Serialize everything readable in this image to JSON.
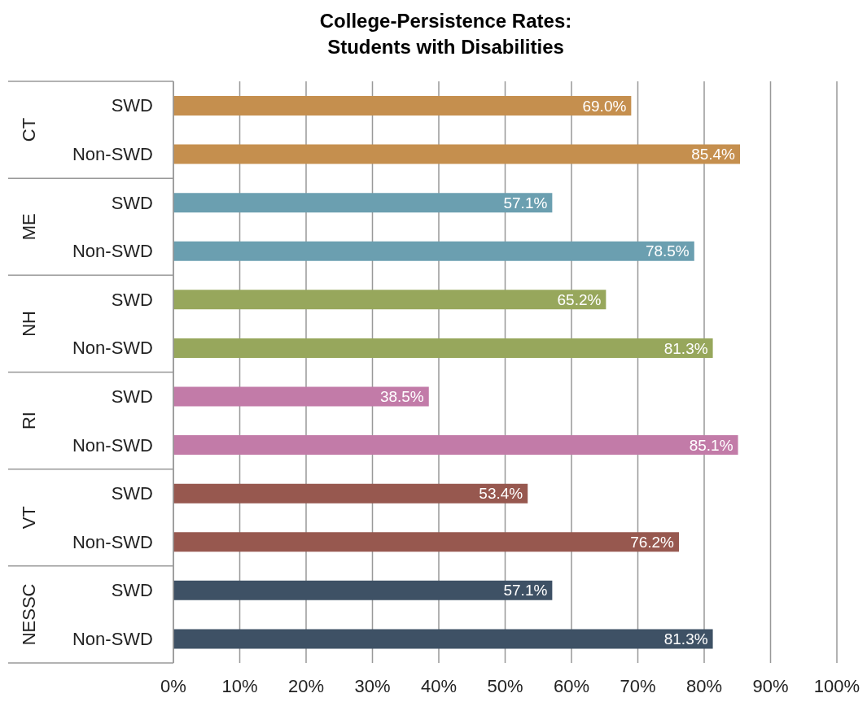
{
  "chart_data": {
    "type": "bar",
    "orientation": "horizontal",
    "title": "College-Persistence Rates:\nStudents with Disabilities",
    "categories": [
      "SWD",
      "Non-SWD",
      "SWD",
      "Non-SWD",
      "SWD",
      "Non-SWD",
      "SWD",
      "Non-SWD",
      "SWD",
      "Non-SWD",
      "SWD",
      "Non-SWD"
    ],
    "values": [
      69.0,
      85.4,
      57.1,
      78.5,
      65.2,
      81.3,
      38.5,
      85.1,
      53.4,
      76.2,
      57.1,
      81.3
    ],
    "value_labels": [
      "69.0%",
      "85.4%",
      "57.1%",
      "78.5%",
      "65.2%",
      "81.3%",
      "38.5%",
      "85.1%",
      "53.4%",
      "76.2%",
      "57.1%",
      "81.3%"
    ],
    "colors": [
      "#c58f4e",
      "#c58f4e",
      "#6b9fb0",
      "#6b9fb0",
      "#97a75c",
      "#97a75c",
      "#c27ba8",
      "#c27ba8",
      "#97584f",
      "#97584f",
      "#3e5165",
      "#3e5165"
    ],
    "annotations": [
      "CT",
      "ME",
      "NH",
      "RI",
      "VT",
      "NESSC"
    ],
    "xlim": [
      0,
      100
    ],
    "xticks": [
      {
        "value": 0,
        "label": "0%"
      },
      {
        "value": 10,
        "label": "10%"
      },
      {
        "value": 20,
        "label": "20%"
      },
      {
        "value": 30,
        "label": "30%"
      },
      {
        "value": 40,
        "label": "40%"
      },
      {
        "value": 50,
        "label": "50%"
      },
      {
        "value": 60,
        "label": "60%"
      },
      {
        "value": 70,
        "label": "70%"
      },
      {
        "value": 80,
        "label": "80%"
      },
      {
        "value": 90,
        "label": "90%"
      },
      {
        "value": 100,
        "label": "100%"
      }
    ],
    "grid": "x",
    "legend": false
  }
}
